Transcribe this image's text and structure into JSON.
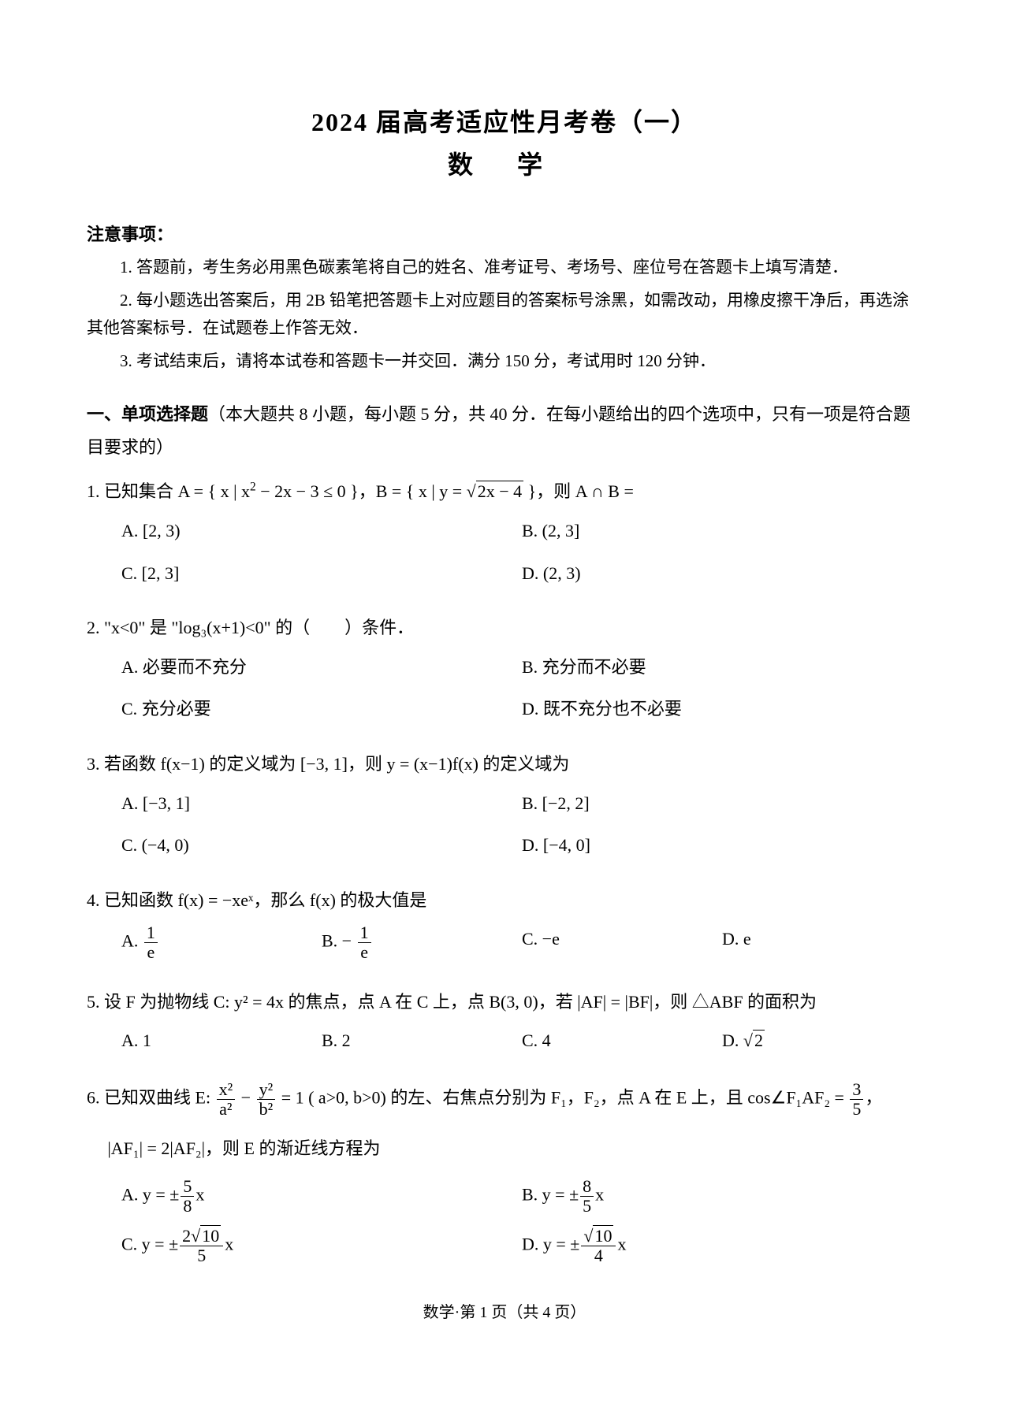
{
  "title": "2024 届高考适应性月考卷（一）",
  "subject": "数 学",
  "notes_heading": "注意事项：",
  "notes": [
    "1. 答题前，考生务必用黑色碳素笔将自己的姓名、准考证号、考场号、座位号在答题卡上填写清楚．",
    "2. 每小题选出答案后，用 2B 铅笔把答题卡上对应题目的答案标号涂黑，如需改动，用橡皮擦干净后，再选涂其他答案标号．在试题卷上作答无效．",
    "3. 考试结束后，请将本试卷和答题卡一并交回．满分 150 分，考试用时 120 分钟．"
  ],
  "section1_bold": "一、单项选择题",
  "section1_rest": "（本大题共 8 小题，每小题 5 分，共 40 分．在每小题给出的四个选项中，只有一项是符合题目要求的）",
  "q1": {
    "stem_pre": "1. 已知集合 A = { x | x",
    "stem_mid": " − 2x − 3 ≤ 0 }，B = { x | y = ",
    "stem_post": " }，则 A ∩ B =",
    "sqrt_inner": "2x − 4",
    "A": "A. [2, 3)",
    "B": "B. (2, 3]",
    "C": "C. [2, 3]",
    "D": "D. (2, 3)"
  },
  "q2": {
    "stem": "2. \"x<0\" 是 \"log₃(x+1)<0\" 的（　　）条件．",
    "A": "A. 必要而不充分",
    "B": "B. 充分而不必要",
    "C": "C. 充分必要",
    "D": "D. 既不充分也不必要"
  },
  "q3": {
    "stem": "3. 若函数 f(x−1) 的定义域为 [−3, 1]，则 y = (x−1)f(x) 的定义域为",
    "A": "A. [−3, 1]",
    "B": "B. [−2, 2]",
    "C": "C. (−4, 0)",
    "D": "D. [−4, 0]"
  },
  "q4": {
    "stem": "4. 已知函数 f(x) = −xeˣ，那么 f(x) 的极大值是",
    "A_pre": "A. ",
    "B_pre": "B. − ",
    "C": "C. −e",
    "D": "D. e",
    "one": "1",
    "e": "e"
  },
  "q5": {
    "stem": "5. 设 F 为抛物线 C: y² = 4x 的焦点，点 A 在 C 上，点 B(3, 0)，若 |AF| = |BF|，则 △ABF 的面积为",
    "A": "A. 1",
    "B": "B. 2",
    "C": "C. 4",
    "D_pre": "D. ",
    "two": "2"
  },
  "q6": {
    "stem_p1": "6. 已知双曲线 E: ",
    "stem_p2": " − ",
    "stem_p3": " = 1 ( a>0,  b>0) 的左、右焦点分别为 F₁，F₂，点 A 在 E 上，且 cos∠F₁AF₂ = ",
    "stem_p4": "，",
    "line2": "|AF₁| = 2|AF₂|，则 E 的渐近线方程为",
    "x2": "x²",
    "a2": "a²",
    "y2": "y²",
    "b2": "b²",
    "three": "3",
    "five": "5",
    "A_pre": "A. y = ±",
    "A_num": "5",
    "A_den": "8",
    "B_pre": "B. y = ±",
    "B_num": "8",
    "B_den": "5",
    "C_pre": "C. y = ±",
    "C_num_pre": "2",
    "C_num_sqrt": "10",
    "C_den": "5",
    "D_pre": "D. y = ±",
    "D_num_sqrt": "10",
    "D_den": "4",
    "x_suffix": "x"
  },
  "footer": "数学·第 1 页（共 4 页）"
}
